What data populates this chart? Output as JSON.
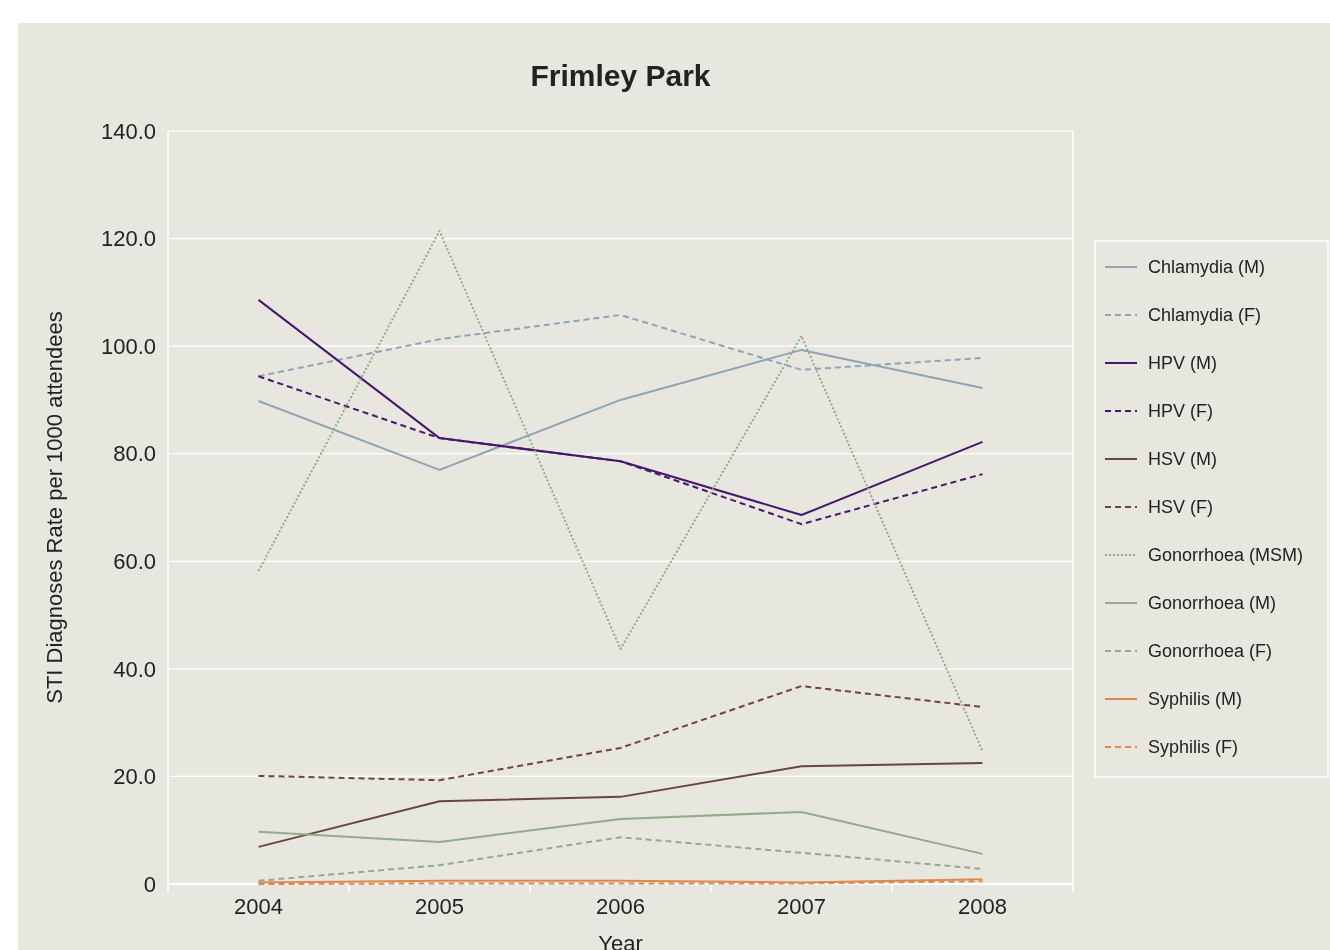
{
  "chart_data": {
    "type": "line",
    "title": "Frimley Park",
    "xlabel": "Year",
    "ylabel": "STI Diagnoses Rate per 1000 attendees",
    "categories": [
      "2004",
      "2005",
      "2006",
      "2007",
      "2008"
    ],
    "ylim": [
      0,
      140
    ],
    "yticks": [
      {
        "value": 0,
        "label": "0"
      },
      {
        "value": 20,
        "label": "20.0"
      },
      {
        "value": 40,
        "label": "40.0"
      },
      {
        "value": 60,
        "label": "60.0"
      },
      {
        "value": 80,
        "label": "80.0"
      },
      {
        "value": 100,
        "label": "100.0"
      },
      {
        "value": 120,
        "label": "120.0"
      },
      {
        "value": 140,
        "label": "140.0"
      }
    ],
    "grid": "y",
    "legend": "right",
    "marker": "none",
    "series": [
      {
        "name": "Chlamydia (M)",
        "color": "#8fa4b4",
        "line_style": "solid",
        "values": [
          89.8,
          77.0,
          90.0,
          99.3,
          92.2
        ]
      },
      {
        "name": "Chlamydia (F)",
        "color": "#8fa4b4",
        "line_style": "dashed",
        "values": [
          94.4,
          101.3,
          105.8,
          95.6,
          97.8
        ]
      },
      {
        "name": "HPV (M)",
        "color": "#47176b",
        "line_style": "solid",
        "values": [
          108.6,
          82.9,
          78.6,
          68.6,
          82.2
        ]
      },
      {
        "name": "HPV (F)",
        "color": "#47176b",
        "line_style": "dashed",
        "values": [
          94.4,
          82.9,
          78.6,
          66.9,
          76.2
        ]
      },
      {
        "name": "HSV (M)",
        "color": "#6d4440",
        "line_style": "solid",
        "values": [
          6.9,
          15.4,
          16.2,
          21.9,
          22.5
        ]
      },
      {
        "name": "HSV (F)",
        "color": "#6d4440",
        "line_style": "dashed",
        "values": [
          20.1,
          19.3,
          25.3,
          36.8,
          32.9
        ]
      },
      {
        "name": "Gonorrhoea (MSM)",
        "color": "#93ab8a",
        "line_style": "dotted",
        "values": [
          58.2,
          121.4,
          43.7,
          101.9,
          24.7
        ]
      },
      {
        "name": "Gonorrhoea (M)",
        "color": "#93ab8a",
        "line_style": "solid",
        "values": [
          9.7,
          7.8,
          12.1,
          13.4,
          5.6
        ]
      },
      {
        "name": "Gonorrhoea (F)",
        "color": "#93ab8a",
        "line_style": "dashed",
        "values": [
          0.6,
          3.5,
          8.7,
          5.8,
          2.8
        ]
      },
      {
        "name": "Syphilis (M)",
        "color": "#dc8a50",
        "line_style": "solid",
        "values": [
          0.3,
          0.6,
          0.6,
          0.3,
          0.9
        ]
      },
      {
        "name": "Syphilis (F)",
        "color": "#dc8a50",
        "line_style": "dashed",
        "values": [
          0,
          0.1,
          0.1,
          0.1,
          0.5
        ]
      }
    ]
  }
}
